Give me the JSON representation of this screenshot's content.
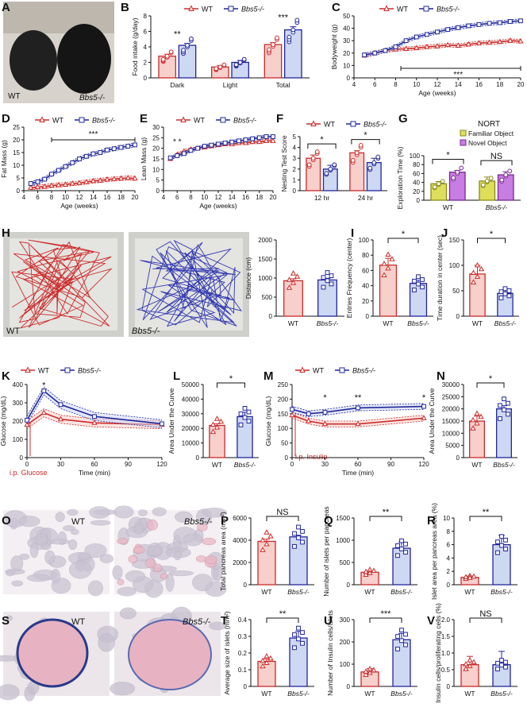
{
  "colors": {
    "wt": "#cc2b2b",
    "ko": "#22279c",
    "wtFill": "#f7cfcb",
    "koFill": "#cdd8f2",
    "familiar": "#dede5a",
    "novel": "#c87de0",
    "ink": "#1a1a1a"
  },
  "panels": {
    "A": "A",
    "B": "B",
    "C": "C",
    "D": "D",
    "E": "E",
    "F": "F",
    "G": "G",
    "H": "H",
    "I": "I",
    "J": "J",
    "K": "K",
    "L": "L",
    "M": "M",
    "N": "N",
    "O": "O",
    "P": "P",
    "Q": "Q",
    "R": "R",
    "S": "S",
    "T": "T",
    "U": "U",
    "V": "V"
  },
  "legend": {
    "wt": "WT",
    "ko": "Bbs5-/-"
  },
  "photos": {
    "A": {
      "wt": "WT",
      "ko": "Bbs5-/-"
    },
    "H": {
      "wt": "WT",
      "ko": "Bbs5-/-"
    },
    "O": {
      "wt": "WT",
      "ko": "Bbs5-/-"
    },
    "S": {
      "wt": "WT",
      "ko": "Bbs5-/-"
    }
  },
  "annotations": {
    "glucose": "i.p. Glucose",
    "insulin": "i.p. Insulin",
    "nort": "NORT",
    "familiar": "Familiar Object",
    "novel": "Novel Object"
  },
  "chart_data": [
    {
      "id": "B",
      "type": "bar",
      "categories": [
        "Dark",
        "Light",
        "Total"
      ],
      "series": [
        {
          "name": "WT",
          "values": [
            2.8,
            1.4,
            4.3
          ]
        },
        {
          "name": "Bbs5-/-",
          "values": [
            4.2,
            2.0,
            6.2
          ]
        }
      ],
      "errors": [
        [
          0.25,
          0.25
        ],
        [
          0.2,
          0.25
        ],
        [
          0.25,
          0.4
        ]
      ],
      "ylabel": "Food intake (g/day)",
      "ylim": [
        0,
        8
      ],
      "yticks": [
        0,
        2,
        4,
        6,
        8
      ],
      "sig": [
        "**",
        "",
        "***"
      ]
    },
    {
      "id": "C",
      "type": "line",
      "x": [
        5,
        6,
        7,
        8,
        9,
        10,
        11,
        12,
        13,
        14,
        15,
        16,
        17,
        18,
        19,
        20
      ],
      "series": [
        {
          "name": "WT",
          "values": [
            18,
            20,
            22,
            23,
            23.5,
            24,
            25,
            25.5,
            26.5,
            26,
            27,
            28,
            28.5,
            29,
            30,
            29.5
          ]
        },
        {
          "name": "Bbs5-/-",
          "values": [
            18.5,
            20,
            22,
            25,
            30,
            33,
            35,
            37,
            39,
            40.5,
            42,
            43,
            44,
            44.5,
            45.5,
            46
          ]
        }
      ],
      "xlabel": "Age (weeks)",
      "ylabel": "Bodyweight (g)",
      "xlim": [
        4,
        20
      ],
      "ylim": [
        0,
        50
      ],
      "xticks": [
        4,
        6,
        8,
        10,
        12,
        14,
        16,
        18,
        20
      ],
      "yticks": [
        0,
        10,
        20,
        30,
        40,
        50
      ],
      "sig": "***"
    },
    {
      "id": "D",
      "type": "line",
      "x": [
        5,
        6,
        7,
        8,
        9,
        10,
        11,
        12,
        13,
        14,
        15,
        16,
        17,
        18,
        19,
        20
      ],
      "series": [
        {
          "name": "WT",
          "values": [
            1.2,
            1.4,
            1.6,
            2,
            2.2,
            2.4,
            2.8,
            3,
            3.4,
            3.8,
            4,
            4.4,
            4.6,
            4.8,
            5,
            4.8
          ]
        },
        {
          "name": "Bbs5-/-",
          "values": [
            2.8,
            3.5,
            4.5,
            6.5,
            8,
            9.5,
            11,
            12.5,
            13.5,
            14.5,
            15,
            16,
            16.5,
            17,
            17.5,
            18
          ]
        }
      ],
      "xlabel": "Age (weeks)",
      "ylabel": "Fat Mass (g)",
      "xlim": [
        4,
        20
      ],
      "ylim": [
        0,
        25
      ],
      "xticks": [
        4,
        6,
        8,
        10,
        12,
        14,
        16,
        18,
        20
      ],
      "yticks": [
        0,
        5,
        10,
        15,
        20,
        25
      ],
      "sig": "***"
    },
    {
      "id": "E",
      "type": "line",
      "x": [
        5,
        6,
        7,
        8,
        9,
        10,
        11,
        12,
        13,
        14,
        15,
        16,
        17,
        18,
        19,
        20
      ],
      "series": [
        {
          "name": "WT",
          "values": [
            15,
            17,
            18.5,
            19.5,
            20,
            20.5,
            21,
            21.5,
            22,
            22,
            22.5,
            22.5,
            23,
            23,
            23.5,
            23.5
          ]
        },
        {
          "name": "Bbs5-/-",
          "values": [
            15.5,
            16.5,
            17.5,
            19,
            20,
            21,
            21.5,
            22,
            22.5,
            23,
            23.5,
            24,
            24.5,
            25,
            25.5,
            25.5
          ]
        }
      ],
      "xlabel": "Age (weeks)",
      "ylabel": "Lean Mass (g)",
      "xlim": [
        4,
        20
      ],
      "ylim": [
        0,
        30
      ],
      "xticks": [
        4,
        6,
        8,
        10,
        12,
        14,
        16,
        18,
        20
      ],
      "yticks": [
        0,
        5,
        10,
        15,
        20,
        25,
        30
      ],
      "sig": "* *"
    },
    {
      "id": "F",
      "type": "bar",
      "categories": [
        "12 hr",
        "24 hr"
      ],
      "series": [
        {
          "name": "WT",
          "values": [
            3.0,
            3.5
          ]
        },
        {
          "name": "Bbs5-/-",
          "values": [
            2.0,
            2.6
          ]
        }
      ],
      "errors": [
        [
          0.3,
          0.35
        ],
        [
          0.2,
          0.4
        ]
      ],
      "ylabel": "Nesting Test Score",
      "ylim": [
        0,
        5
      ],
      "yticks": [
        0,
        1,
        2,
        3,
        4,
        5
      ],
      "sig": [
        "*",
        "*"
      ]
    },
    {
      "id": "G",
      "type": "bar",
      "categories": [
        "WT",
        "Bbs5-/-"
      ],
      "series": [
        {
          "name": "Familiar Object",
          "values": [
            37,
            43
          ]
        },
        {
          "name": "Novel Object",
          "values": [
            63,
            57
          ]
        }
      ],
      "errors": [
        [
          5,
          4
        ],
        [
          9,
          7
        ]
      ],
      "ylabel": "Exploration Time (%)",
      "ylim": [
        0,
        100
      ],
      "yticks": [
        0,
        20,
        40,
        60,
        80,
        100
      ],
      "sig": [
        "*",
        "NS"
      ]
    },
    {
      "id": "H2",
      "type": "bar",
      "categories": [
        "WT",
        "Bbs5-/-"
      ],
      "values": [
        930,
        950
      ],
      "errors": [
        50,
        45
      ],
      "ylabel": "Distance (cm)",
      "ylim": [
        0,
        2000
      ],
      "yticks": [
        0,
        500,
        1000,
        1500,
        2000
      ],
      "sig": ""
    },
    {
      "id": "I",
      "type": "bar",
      "categories": [
        "WT",
        "Bbs5-/-"
      ],
      "values": [
        67,
        43
      ],
      "errors": [
        9,
        4
      ],
      "ylabel": "Entries Frequency (center)",
      "ylim": [
        0,
        100
      ],
      "yticks": [
        0,
        20,
        40,
        60,
        80,
        100
      ],
      "sig": "*"
    },
    {
      "id": "J",
      "type": "bar",
      "categories": [
        "WT",
        "Bbs5-/-"
      ],
      "values": [
        83,
        45
      ],
      "errors": [
        17,
        7
      ],
      "ylabel": "Time duration in center (sec)",
      "ylim": [
        0,
        150
      ],
      "yticks": [
        0,
        50,
        100,
        150
      ],
      "sig": "*"
    },
    {
      "id": "K",
      "type": "line",
      "x": [
        0,
        15,
        30,
        60,
        120
      ],
      "series": [
        {
          "name": "WT",
          "values": [
            180,
            245,
            210,
            190,
            180
          ]
        },
        {
          "name": "Bbs5-/-",
          "values": [
            205,
            365,
            290,
            225,
            185
          ]
        }
      ],
      "xlabel": "Time (min)",
      "ylabel": "Glucose (mg/dL)",
      "xlim": [
        0,
        120
      ],
      "ylim": [
        0,
        400
      ],
      "xticks": [
        0,
        30,
        60,
        90,
        120
      ],
      "yticks": [
        0,
        100,
        200,
        300,
        400
      ],
      "sig": "*"
    },
    {
      "id": "L",
      "type": "bar",
      "categories": [
        "WT",
        "Bbs5-/-"
      ],
      "values": [
        22000,
        28000
      ],
      "errors": [
        1200,
        3000
      ],
      "ylabel": "Area Under the Curve",
      "ylim": [
        0,
        50000
      ],
      "yticks": [
        0,
        10000,
        20000,
        30000,
        40000,
        50000
      ],
      "sig": "*"
    },
    {
      "id": "M",
      "type": "line",
      "x": [
        0,
        15,
        30,
        60,
        120
      ],
      "series": [
        {
          "name": "WT",
          "values": [
            145,
            125,
            115,
            115,
            135
          ]
        },
        {
          "name": "Bbs5-/-",
          "values": [
            165,
            150,
            155,
            170,
            175
          ]
        }
      ],
      "xlabel": "Time (min)",
      "ylabel": "Glucose (mg/dL)",
      "xlim": [
        0,
        120
      ],
      "ylim": [
        0,
        250
      ],
      "xticks": [
        0,
        30,
        60,
        90,
        120
      ],
      "yticks": [
        0,
        50,
        100,
        150,
        200,
        250
      ],
      "sig": [
        "*",
        "**",
        "*"
      ]
    },
    {
      "id": "N",
      "type": "bar",
      "categories": [
        "WT",
        "Bbs5-/-"
      ],
      "values": [
        15000,
        20000
      ],
      "errors": [
        2000,
        1300
      ],
      "ylabel": "Area Under the Curve",
      "ylim": [
        0,
        30000
      ],
      "yticks": [
        0,
        5000,
        10000,
        15000,
        20000,
        25000,
        30000
      ],
      "sig": "*"
    },
    {
      "id": "P",
      "type": "bar",
      "categories": [
        "WT",
        "Bbs5-/-"
      ],
      "values": [
        3900,
        4300
      ],
      "errors": [
        200,
        150
      ],
      "ylabel": "Total pancreas area (mm²)",
      "ylim": [
        0,
        6000
      ],
      "yticks": [
        0,
        2000,
        4000,
        6000
      ],
      "sig": "NS"
    },
    {
      "id": "Q",
      "type": "bar",
      "categories": [
        "WT",
        "Bbs5-/-"
      ],
      "values": [
        280,
        820
      ],
      "errors": [
        20,
        140
      ],
      "ylabel": "Number of islets per pancreas",
      "ylim": [
        0,
        1500
      ],
      "yticks": [
        0,
        500,
        1000,
        1500
      ],
      "sig": "**"
    },
    {
      "id": "R",
      "type": "bar",
      "categories": [
        "WT",
        "Bbs5-/-"
      ],
      "values": [
        1.1,
        6.0
      ],
      "errors": [
        0.2,
        1.4
      ],
      "ylabel": "Islet area per pancreas area (%)",
      "ylim": [
        0,
        10
      ],
      "yticks": [
        0,
        2,
        4,
        6,
        8,
        10
      ],
      "sig": "**"
    },
    {
      "id": "T",
      "type": "bar",
      "categories": [
        "WT",
        "Bbs5-/-"
      ],
      "values": [
        0.15,
        0.29
      ],
      "errors": [
        0.015,
        0.04
      ],
      "ylabel": "Average size of islets (mm²)",
      "ylim": [
        0,
        0.4
      ],
      "yticks": [
        0,
        0.1,
        0.2,
        0.3,
        0.4
      ],
      "sig": "**"
    },
    {
      "id": "U",
      "type": "bar",
      "categories": [
        "WT",
        "Bbs5-/-"
      ],
      "values": [
        65,
        210
      ],
      "errors": [
        15,
        28
      ],
      "ylabel": "Number of Insulin cells/islets",
      "ylim": [
        0,
        300
      ],
      "yticks": [
        0,
        100,
        200,
        300
      ],
      "sig": "***"
    },
    {
      "id": "V",
      "type": "bar",
      "categories": [
        "WT",
        "Bbs5-/-"
      ],
      "values": [
        0.65,
        0.65
      ],
      "errors": [
        0.25,
        0.4
      ],
      "ylabel": "Insulin cells/proliferating cells (%)",
      "ylim": [
        0,
        2
      ],
      "yticks": [
        0,
        0.5,
        1.0,
        1.5,
        2.0
      ],
      "sig": "NS"
    }
  ]
}
